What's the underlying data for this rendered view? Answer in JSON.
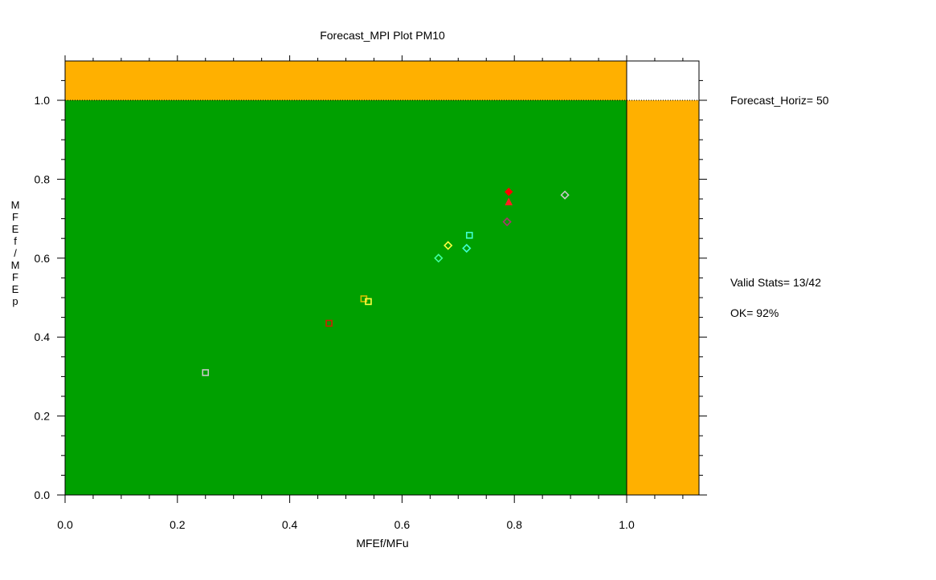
{
  "chart_data": {
    "type": "scatter",
    "title": "Forecast_MPI Plot  PM10",
    "xlabel": "MFEf/MFu",
    "ylabel": "MFEf/MFEp",
    "xlim": [
      0.0,
      1.13
    ],
    "ylim": [
      0.0,
      1.1
    ],
    "x_ticks": [
      "0.0",
      "0.2",
      "0.4",
      "0.6",
      "0.8",
      "1.0"
    ],
    "y_ticks": [
      "0.0",
      "0.2",
      "0.4",
      "0.6",
      "0.8",
      "1.0"
    ],
    "regions": {
      "ok_color": "#00a000",
      "warn_color": "#ffb000",
      "threshold_x": 1.0,
      "threshold_y": 1.0
    },
    "points": [
      {
        "x": 0.25,
        "y": 0.31,
        "marker": "square",
        "color": "#c8c8c8"
      },
      {
        "x": 0.47,
        "y": 0.435,
        "marker": "square",
        "color": "#cc2200"
      },
      {
        "x": 0.532,
        "y": 0.497,
        "marker": "square",
        "color": "#d4c000"
      },
      {
        "x": 0.54,
        "y": 0.49,
        "marker": "square",
        "color": "#ffff40"
      },
      {
        "x": 0.665,
        "y": 0.6,
        "marker": "diamond",
        "color": "#40ffa0"
      },
      {
        "x": 0.682,
        "y": 0.632,
        "marker": "diamond",
        "color": "#ffff40"
      },
      {
        "x": 0.715,
        "y": 0.625,
        "marker": "diamond",
        "color": "#40ffd0"
      },
      {
        "x": 0.72,
        "y": 0.658,
        "marker": "square",
        "color": "#40ffd0"
      },
      {
        "x": 0.787,
        "y": 0.692,
        "marker": "diamond",
        "color": "#b03070"
      },
      {
        "x": 0.79,
        "y": 0.742,
        "marker": "triangle",
        "color": "#ff2020"
      },
      {
        "x": 0.79,
        "y": 0.768,
        "marker": "diamond-filled",
        "color": "#ff0000"
      },
      {
        "x": 0.89,
        "y": 0.76,
        "marker": "diamond",
        "color": "#c8c8c8"
      }
    ]
  },
  "side_labels": {
    "horizon": "Forecast_Horiz= 50",
    "valid_stats": "Valid Stats= 13/42",
    "ok": "OK= 92%"
  },
  "ylabel_letters": [
    "M",
    "F",
    "E",
    "f",
    "/",
    "M",
    "F",
    "E",
    "p"
  ]
}
